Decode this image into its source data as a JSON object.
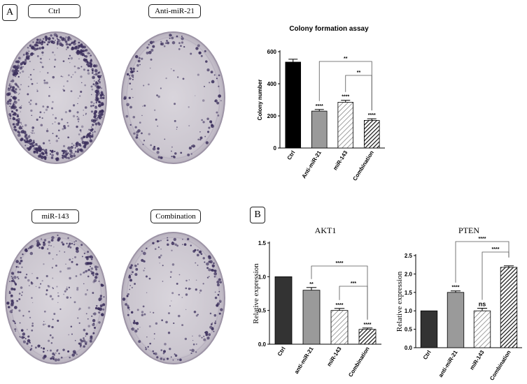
{
  "panel_a_label": "A",
  "panel_b_label": "B",
  "dish_labels": {
    "ctrl": "Ctrl",
    "anti": "Anti-miR-21",
    "mir143": "miR-143",
    "combo": "Combination"
  },
  "chart_data": [
    {
      "type": "bar",
      "title": "Colony formation assay",
      "ylabel": "Colony number",
      "xlabel": "",
      "categories": [
        "Ctrl",
        "Anti-miR-21",
        "miR-143",
        "Combination"
      ],
      "values": [
        535,
        230,
        285,
        172
      ],
      "errors": [
        18,
        10,
        12,
        10
      ],
      "ylim": [
        0,
        600
      ],
      "yticks": [
        "0",
        "200",
        "400",
        "600"
      ],
      "bar_labels": [
        "",
        "****",
        "****",
        "****"
      ],
      "brackets": [
        {
          "from": 1,
          "to": 3,
          "label": "**"
        },
        {
          "from": 2,
          "to": 3,
          "label": "**"
        }
      ],
      "fills": [
        "solid-black",
        "gray",
        "light-hatch",
        "dark-hatch"
      ]
    },
    {
      "type": "bar",
      "title": "AKT1",
      "ylabel": "Relative expression",
      "xlabel": "",
      "categories": [
        "Ctrl",
        "anti-miR-21",
        "miR-143",
        "Combination"
      ],
      "values": [
        1.0,
        0.8,
        0.5,
        0.22
      ],
      "errors": [
        0,
        0.04,
        0.03,
        0.02
      ],
      "ylim": [
        0,
        1.5
      ],
      "yticks": [
        "0.0",
        "0.5",
        "1.0",
        "1.5"
      ],
      "bar_labels": [
        "",
        "**",
        "****",
        "****"
      ],
      "brackets": [
        {
          "from": 1,
          "to": 3,
          "label": "****"
        },
        {
          "from": 2,
          "to": 3,
          "label": "***"
        }
      ],
      "fills": [
        "dark",
        "gray",
        "light-hatch",
        "dark-hatch"
      ]
    },
    {
      "type": "bar",
      "title": "PTEN",
      "ylabel": "Relative expression",
      "xlabel": "",
      "categories": [
        "Ctrl",
        "anti-miR-21",
        "miR-143",
        "Combination"
      ],
      "values": [
        1.0,
        1.5,
        1.0,
        2.18
      ],
      "errors": [
        0,
        0.04,
        0.07,
        0.04
      ],
      "ylim": [
        0,
        2.5
      ],
      "yticks": [
        "0.0",
        "0.5",
        "1.0",
        "1.5",
        "2.0",
        "2.5"
      ],
      "bar_labels": [
        "",
        "****",
        "ns",
        ""
      ],
      "brackets": [
        {
          "from": 1,
          "to": 3,
          "label": "****"
        },
        {
          "from": 2,
          "to": 3,
          "label": "****"
        }
      ],
      "fills": [
        "dark",
        "gray",
        "light-hatch",
        "dark-hatch"
      ]
    }
  ]
}
